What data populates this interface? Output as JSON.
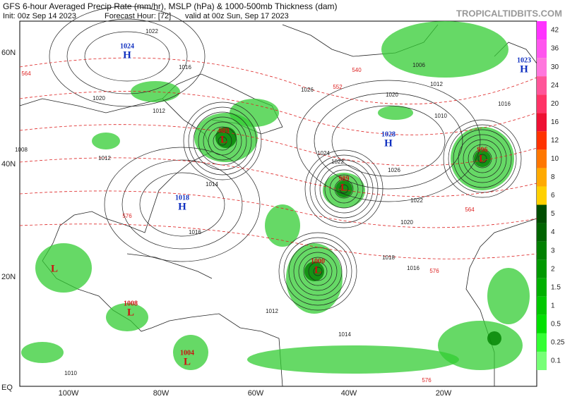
{
  "header": {
    "title": "GFS 6-hour Averaged Precip Rate (mm/hr), MSLP (hPa) & 1000-500mb Thickness (dam)",
    "init": "Init: 00z Sep 14 2023",
    "forecast_hour": "Forecast Hour: [72]",
    "valid": "valid at 00z Sun, Sep 17 2023",
    "brand": "TROPICALTIDBITS.COM"
  },
  "lat_labels": [
    "60N",
    "40N",
    "20N",
    "EQ"
  ],
  "lon_labels": [
    "100W",
    "80W",
    "60W",
    "40W",
    "20W"
  ],
  "colorbar": {
    "labels": [
      "42",
      "36",
      "30",
      "24",
      "20",
      "16",
      "12",
      "10",
      "8",
      "6",
      "5",
      "4",
      "3",
      "2",
      "1.5",
      "1",
      "0.5",
      "0.25",
      "0.1"
    ]
  },
  "centers": [
    {
      "letter": "H",
      "value": "1024"
    },
    {
      "letter": "H",
      "value": "1023"
    },
    {
      "letter": "H",
      "value": "1028"
    },
    {
      "letter": "H",
      "value": "1018"
    },
    {
      "letter": "L",
      "value": "989"
    },
    {
      "letter": "L",
      "value": "989"
    },
    {
      "letter": "L",
      "value": "996"
    },
    {
      "letter": "L",
      "value": "1000"
    },
    {
      "letter": "L",
      "value": "1008"
    },
    {
      "letter": "L",
      "value": "1004"
    },
    {
      "letter": "L"
    }
  ],
  "isobar_labels": [
    "1022",
    "1016",
    "1020",
    "1012",
    "1008",
    "1012",
    "1014",
    "1016",
    "1026",
    "1020",
    "1024",
    "1022",
    "1026",
    "1022",
    "1020",
    "1018",
    "1016",
    "1014",
    "1012",
    "1010",
    "1010",
    "1012",
    "1016",
    "1006"
  ],
  "thickness_labels": [
    "564",
    "576",
    "552",
    "540",
    "564",
    "576",
    "576"
  ]
}
